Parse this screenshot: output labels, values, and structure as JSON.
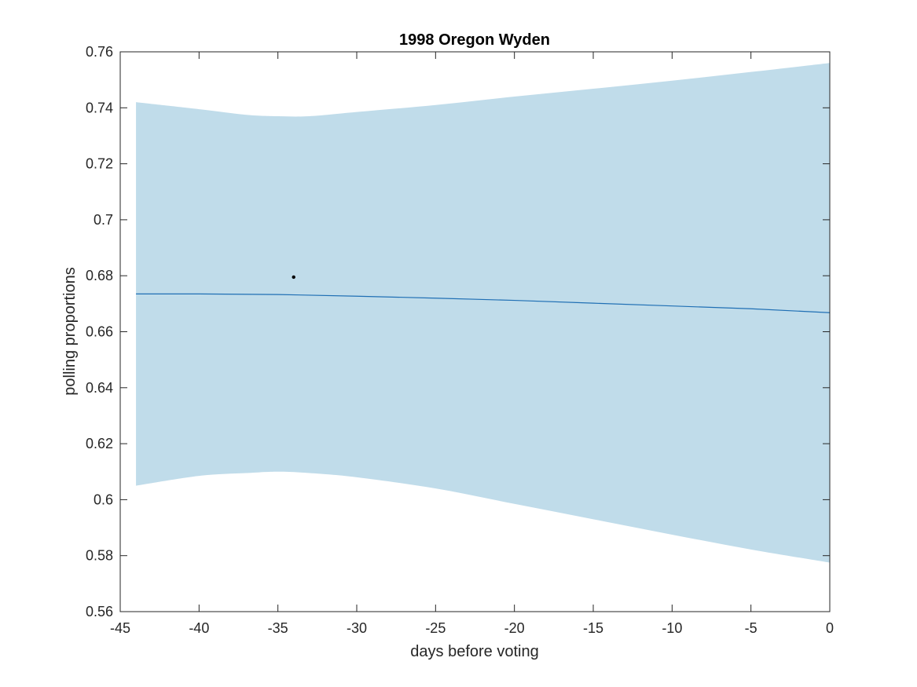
{
  "chart_data": {
    "type": "line",
    "title": "1998 Oregon Wyden",
    "xlabel": "days before voting",
    "ylabel": "polling proportions",
    "xlim": [
      -45,
      0
    ],
    "ylim": [
      0.56,
      0.76
    ],
    "xticks": [
      -45,
      -40,
      -35,
      -30,
      -25,
      -20,
      -15,
      -10,
      -5,
      0
    ],
    "xtick_labels": [
      "-45",
      "-40",
      "-35",
      "-30",
      "-25",
      "-20",
      "-15",
      "-10",
      "-5",
      "0"
    ],
    "yticks": [
      0.56,
      0.58,
      0.6,
      0.62,
      0.64,
      0.66,
      0.68,
      0.7,
      0.72,
      0.74,
      0.76
    ],
    "ytick_labels": [
      "0.56",
      "0.58",
      "0.6",
      "0.62",
      "0.64",
      "0.66",
      "0.68",
      "0.7",
      "0.72",
      "0.74",
      "0.76"
    ],
    "grid": false,
    "colors": {
      "band": "#c0dcea",
      "line": "#1f6fb4",
      "point": "#000000",
      "axis": "#262626"
    },
    "band": {
      "x": [
        -44,
        -40,
        -37,
        -35,
        -33,
        -30,
        -25,
        -20,
        -15,
        -10,
        -5,
        0
      ],
      "upper": [
        0.742,
        0.7395,
        0.7375,
        0.737,
        0.737,
        0.7385,
        0.741,
        0.744,
        0.7468,
        0.7497,
        0.7528,
        0.756
      ],
      "lower": [
        0.605,
        0.6085,
        0.6095,
        0.61,
        0.6095,
        0.608,
        0.604,
        0.5985,
        0.593,
        0.5875,
        0.5822,
        0.5775
      ]
    },
    "series": [
      {
        "x": [
          -44,
          -40,
          -35,
          -30,
          -25,
          -20,
          -15,
          -10,
          -5,
          0
        ],
        "values": [
          0.6735,
          0.6735,
          0.6733,
          0.6727,
          0.672,
          0.6712,
          0.6702,
          0.6692,
          0.6682,
          0.6668
        ]
      }
    ],
    "points": [
      {
        "x": -34,
        "y": 0.6795
      }
    ]
  }
}
